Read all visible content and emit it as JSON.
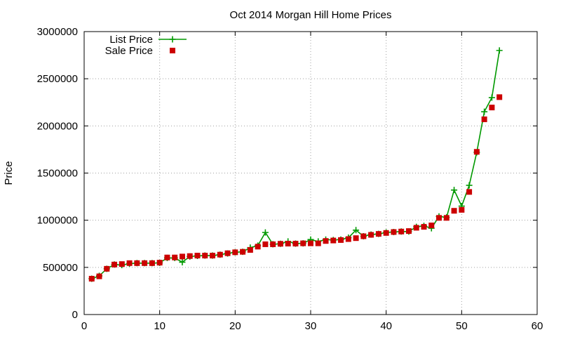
{
  "chart_data": {
    "type": "line",
    "title": "Oct 2014 Morgan Hill Home Prices",
    "xlabel": "",
    "ylabel": "Price",
    "xlim": [
      0,
      60
    ],
    "ylim": [
      0,
      3000000
    ],
    "xticks": [
      0,
      10,
      20,
      30,
      40,
      50,
      60
    ],
    "yticks": [
      0,
      500000,
      1000000,
      1500000,
      2000000,
      2500000,
      3000000
    ],
    "grid": true,
    "legend_position": "top-left",
    "series": [
      {
        "name": "List Price",
        "style": "line-with-plus-markers",
        "color": "#009900",
        "x": [
          1,
          2,
          3,
          4,
          5,
          6,
          7,
          8,
          9,
          10,
          11,
          12,
          13,
          14,
          15,
          16,
          17,
          18,
          19,
          20,
          21,
          22,
          23,
          24,
          25,
          26,
          27,
          28,
          29,
          30,
          31,
          32,
          33,
          34,
          35,
          36,
          37,
          38,
          39,
          40,
          41,
          42,
          43,
          44,
          45,
          46,
          47,
          48,
          49,
          50,
          51,
          52,
          53,
          54,
          55
        ],
        "values": [
          380000,
          410000,
          485000,
          530000,
          525000,
          540000,
          545000,
          545000,
          545000,
          548000,
          600000,
          600000,
          555000,
          615000,
          622000,
          625000,
          625000,
          635000,
          648000,
          660000,
          665000,
          710000,
          730000,
          870000,
          745000,
          750000,
          775000,
          752000,
          755000,
          795000,
          775000,
          795000,
          790000,
          795000,
          815000,
          895000,
          830000,
          848000,
          855000,
          870000,
          875000,
          880000,
          880000,
          930000,
          940000,
          915000,
          1040000,
          1030000,
          1320000,
          1150000,
          1370000,
          1720000,
          2150000,
          2300000,
          2800000
        ]
      },
      {
        "name": "Sale Price",
        "style": "square-markers",
        "color": "#cc0000",
        "x": [
          1,
          2,
          3,
          4,
          5,
          6,
          7,
          8,
          9,
          10,
          11,
          12,
          13,
          14,
          15,
          16,
          17,
          18,
          19,
          20,
          21,
          22,
          23,
          24,
          25,
          26,
          27,
          28,
          29,
          30,
          31,
          32,
          33,
          34,
          35,
          36,
          37,
          38,
          39,
          40,
          41,
          42,
          43,
          44,
          45,
          46,
          47,
          48,
          49,
          50,
          51,
          52,
          53,
          54,
          55
        ],
        "values": [
          380000,
          405000,
          485000,
          530000,
          535000,
          545000,
          545000,
          545000,
          545000,
          550000,
          605000,
          605000,
          615000,
          620000,
          625000,
          625000,
          625000,
          635000,
          650000,
          660000,
          665000,
          685000,
          720000,
          745000,
          745000,
          750000,
          752000,
          752000,
          755000,
          755000,
          755000,
          780000,
          785000,
          790000,
          800000,
          810000,
          830000,
          845000,
          855000,
          865000,
          875000,
          880000,
          885000,
          920000,
          930000,
          945000,
          1025000,
          1025000,
          1100000,
          1110000,
          1300000,
          1725000,
          2070000,
          2195000,
          2305000
        ]
      }
    ]
  }
}
